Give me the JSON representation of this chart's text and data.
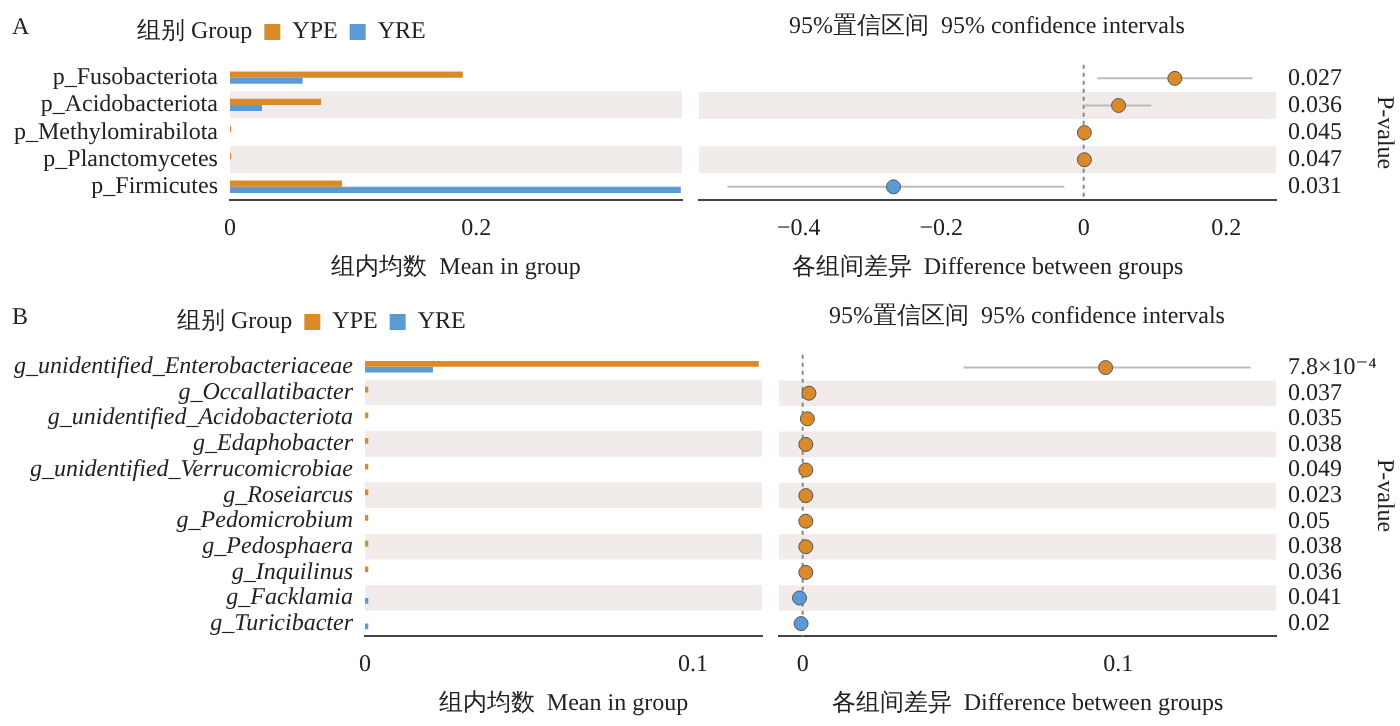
{
  "chart_data": [
    {
      "type": "bar",
      "orientation": "horizontal",
      "annotations": [
        "A"
      ],
      "legend": "top",
      "legend_title": "组别 Group",
      "xlabel": "组内均数  Mean in group",
      "categories": [
        "p_Fusobacteriota",
        "p_Acidobacteriota",
        "p_Methylomirabilota",
        "p_Planctomycetes",
        "p_Firmicutes"
      ],
      "series": [
        {
          "name": "YPE",
          "color": "#d98b2b",
          "values": [
            0.189,
            0.074,
            0.001,
            0.001,
            0.091
          ]
        },
        {
          "name": "YRE",
          "color": "#5b9bd5",
          "values": [
            0.059,
            0.026,
            0,
            0,
            0.366
          ]
        }
      ],
      "xlim": [
        0,
        0.367
      ],
      "xticks": [
        0,
        0.2
      ],
      "bands": [
        {
          "axis": "y",
          "from": "p_Acidobacteriota",
          "to": "p_Acidobacteriota",
          "color": "#f1ebea"
        },
        {
          "axis": "y",
          "from": "p_Planctomycetes",
          "to": "p_Planctomycetes",
          "color": "#f1ebea"
        }
      ]
    },
    {
      "type": "scatter",
      "orientation": "horizontal",
      "title": "95%置信区间  95% confidence intervals",
      "xlabel": "各组间差异  Difference between groups",
      "y2label": "P-value",
      "tick_labels": "x",
      "categories": [
        "p_Fusobacteriota",
        "p_Acidobacteriota",
        "p_Methylomirabilota",
        "p_Planctomycetes",
        "p_Firmicutes"
      ],
      "values": [
        0.128,
        0.049,
        0.001,
        0.001,
        -0.267
      ],
      "colors": [
        "#d98b2b",
        "#d98b2b",
        "#d98b2b",
        "#d98b2b",
        "#5b9bd5"
      ],
      "errors": [
        [
          0.019,
          0.237
        ],
        [
          0.0,
          0.095
        ],
        null,
        null,
        [
          -0.5,
          -0.027
        ]
      ],
      "xlim": [
        -0.54,
        0.27
      ],
      "xticks": [
        -0.4,
        -0.2,
        0,
        0.2
      ],
      "ref_lines": [
        {
          "axis": "x",
          "value": 0,
          "color": "#888888",
          "line_style": "dotted"
        }
      ],
      "bands": [
        {
          "axis": "y",
          "from": "p_Acidobacteriota",
          "to": "p_Acidobacteriota",
          "color": "#f1ebea"
        },
        {
          "axis": "y",
          "from": "p_Planctomycetes",
          "to": "p_Planctomycetes",
          "color": "#f1ebea"
        }
      ],
      "annotations": [
        "0.027",
        "0.036",
        "0.045",
        "0.047",
        "0.031"
      ]
    },
    {
      "type": "bar",
      "orientation": "horizontal",
      "annotations": [
        "B"
      ],
      "legend": "top",
      "legend_title": "组别 Group",
      "xlabel": "组内均数  Mean in group",
      "categories": [
        "g_unidentified_Enterobacteriaceae",
        "g_Occallatibacter",
        "g_unidentified_Acidobacteriota",
        "g_Edaphobacter",
        "g_unidentified_Verrucomicrobiae",
        "g_Roseiarcus",
        "g_Pedomicrobium",
        "g_Pedosphaera",
        "g_Inquilinus",
        "g_Facklamia",
        "g_Turicibacter"
      ],
      "series": [
        {
          "name": "YPE",
          "color": "#d98b2b",
          "values": [
            0.12,
            0.001,
            0.001,
            0.001,
            0.001,
            0.001,
            0.001,
            0.001,
            0.001,
            0,
            0
          ]
        },
        {
          "name": "YRE",
          "color": "#5b9bd5",
          "values": [
            0.0207,
            0,
            0,
            0,
            0,
            0,
            0,
            0,
            0,
            0.001,
            0.001
          ]
        }
      ],
      "xlim": [
        0,
        0.121
      ],
      "xticks": [
        0,
        0.1
      ],
      "bands": [
        {
          "axis": "y",
          "from": "g_Occallatibacter",
          "to": "g_Occallatibacter",
          "color": "#f1ebea"
        },
        {
          "axis": "y",
          "from": "g_Edaphobacter",
          "to": "g_Edaphobacter",
          "color": "#f1ebea"
        },
        {
          "axis": "y",
          "from": "g_Roseiarcus",
          "to": "g_Roseiarcus",
          "color": "#f1ebea"
        },
        {
          "axis": "y",
          "from": "g_Pedosphaera",
          "to": "g_Pedosphaera",
          "color": "#f1ebea"
        },
        {
          "axis": "y",
          "from": "g_Facklamia",
          "to": "g_Facklamia",
          "color": "#f1ebea"
        }
      ]
    },
    {
      "type": "scatter",
      "orientation": "horizontal",
      "title": "95%置信区间  95% confidence intervals",
      "xlabel": "各组间差异  Difference between groups",
      "y2label": "P-value",
      "tick_labels": "x",
      "categories": [
        "g_unidentified_Enterobacteriaceae",
        "g_Occallatibacter",
        "g_unidentified_Acidobacteriota",
        "g_Edaphobacter",
        "g_unidentified_Verrucomicrobiae",
        "g_Roseiarcus",
        "g_Pedomicrobium",
        "g_Pedosphaera",
        "g_Inquilinus",
        "g_Facklamia",
        "g_Turicibacter"
      ],
      "values": [
        0.096,
        0.002,
        0.0015,
        0.001,
        0.001,
        0.001,
        0.001,
        0.001,
        0.001,
        -0.001,
        -0.0005
      ],
      "colors": [
        "#d98b2b",
        "#d98b2b",
        "#d98b2b",
        "#d98b2b",
        "#d98b2b",
        "#d98b2b",
        "#d98b2b",
        "#d98b2b",
        "#d98b2b",
        "#5b9bd5",
        "#5b9bd5"
      ],
      "errors": [
        [
          0.051,
          0.142
        ],
        null,
        null,
        null,
        null,
        null,
        null,
        null,
        null,
        null,
        null
      ],
      "xlim": [
        -0.0075,
        0.15
      ],
      "xticks": [
        0,
        0.1
      ],
      "ref_lines": [
        {
          "axis": "x",
          "value": 0,
          "color": "#888888",
          "line_style": "dotted"
        }
      ],
      "bands": [
        {
          "axis": "y",
          "from": "g_Occallatibacter",
          "to": "g_Occallatibacter",
          "color": "#f1ebea"
        },
        {
          "axis": "y",
          "from": "g_Edaphobacter",
          "to": "g_Edaphobacter",
          "color": "#f1ebea"
        },
        {
          "axis": "y",
          "from": "g_Roseiarcus",
          "to": "g_Roseiarcus",
          "color": "#f1ebea"
        },
        {
          "axis": "y",
          "from": "g_Pedosphaera",
          "to": "g_Pedosphaera",
          "color": "#f1ebea"
        },
        {
          "axis": "y",
          "from": "g_Facklamia",
          "to": "g_Facklamia",
          "color": "#f1ebea"
        }
      ],
      "annotations": [
        "7.8×10⁻⁴",
        "0.037",
        "0.035",
        "0.038",
        "0.049",
        "0.023",
        "0.05",
        "0.038",
        "0.036",
        "0.041",
        "0.02"
      ]
    }
  ]
}
